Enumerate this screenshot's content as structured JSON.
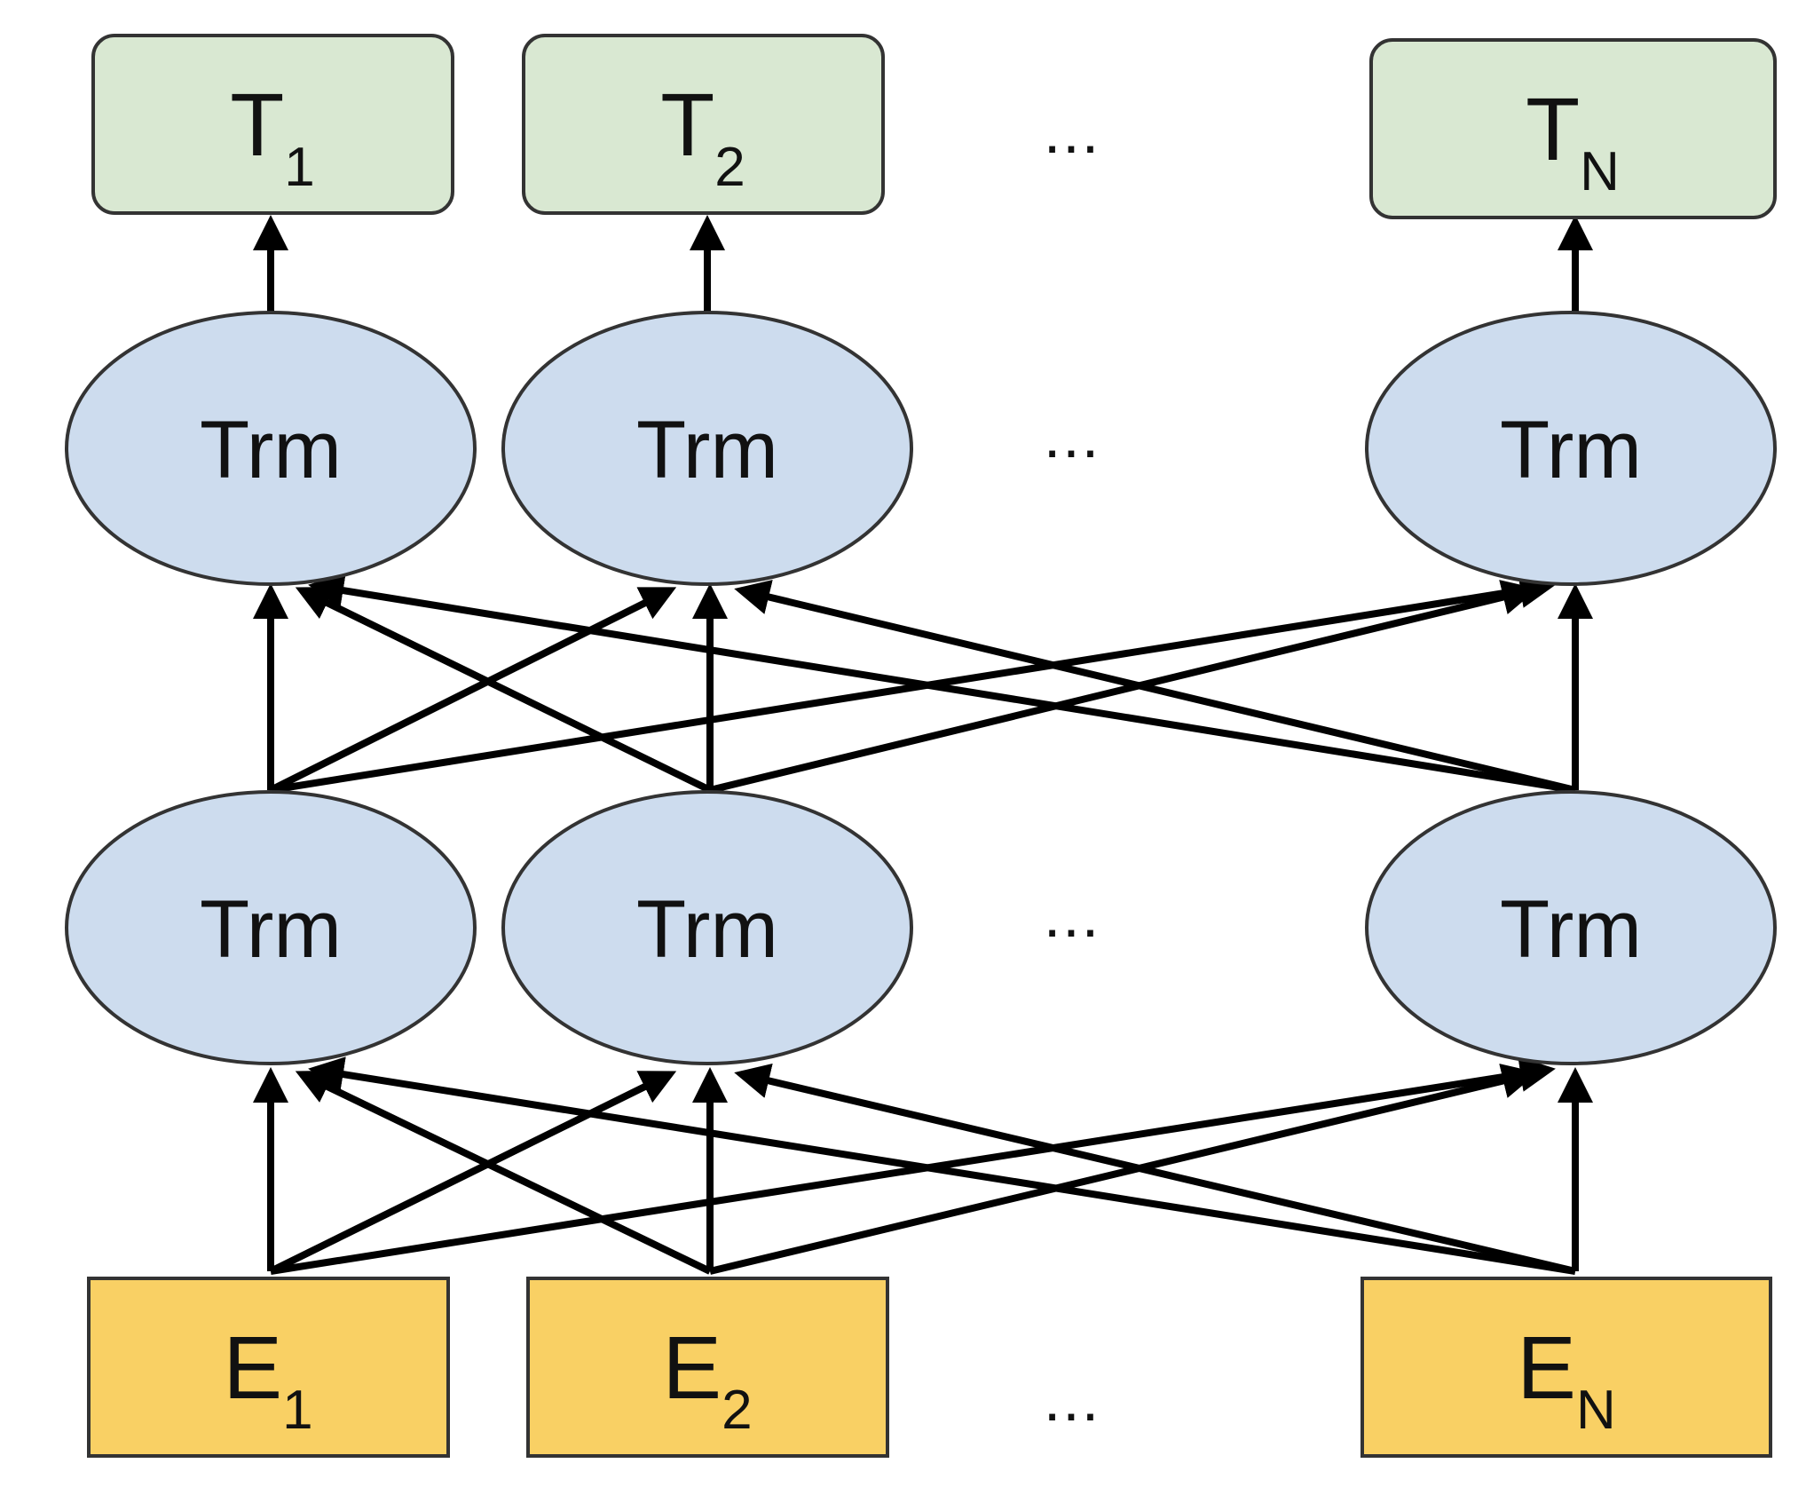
{
  "outputs": [
    {
      "main": "T",
      "sub": "1"
    },
    {
      "main": "T",
      "sub": "2"
    },
    {
      "main": "T",
      "sub": "N"
    }
  ],
  "inputs": [
    {
      "main": "E",
      "sub": "1"
    },
    {
      "main": "E",
      "sub": "2"
    },
    {
      "main": "E",
      "sub": "N"
    }
  ],
  "layers": [
    [
      "Trm",
      "Trm",
      "Trm"
    ],
    [
      "Trm",
      "Trm",
      "Trm"
    ]
  ],
  "ellipsis": "...",
  "colors": {
    "output_fill": "#d9e8d2",
    "node_fill": "#cddcee",
    "input_fill": "#f9d064",
    "stroke": "#333333"
  }
}
